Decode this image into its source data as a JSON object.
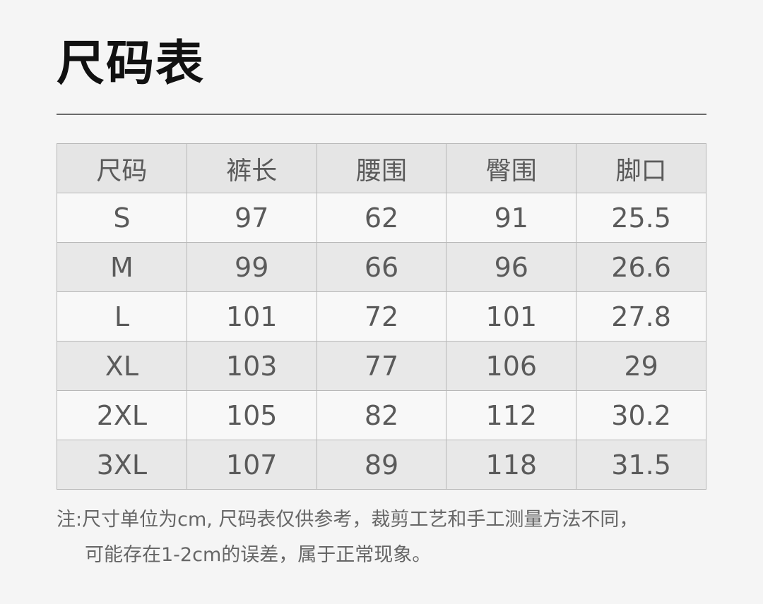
{
  "title": "尺码表",
  "table": {
    "headers": [
      "尺码",
      "裤长",
      "腰围",
      "臀围",
      "脚口"
    ],
    "rows": [
      [
        "S",
        "97",
        "62",
        "91",
        "25.5"
      ],
      [
        "M",
        "99",
        "66",
        "96",
        "26.6"
      ],
      [
        "L",
        "101",
        "72",
        "101",
        "27.8"
      ],
      [
        "XL",
        "103",
        "77",
        "106",
        "29"
      ],
      [
        "2XL",
        "105",
        "82",
        "112",
        "30.2"
      ],
      [
        "3XL",
        "107",
        "89",
        "118",
        "31.5"
      ]
    ]
  },
  "note": {
    "line1": "注:尺寸单位为cm, 尺码表仅供参考，裁剪工艺和手工测量方法不同，",
    "line2": "可能存在1-2cm的误差，属于正常现象。"
  }
}
